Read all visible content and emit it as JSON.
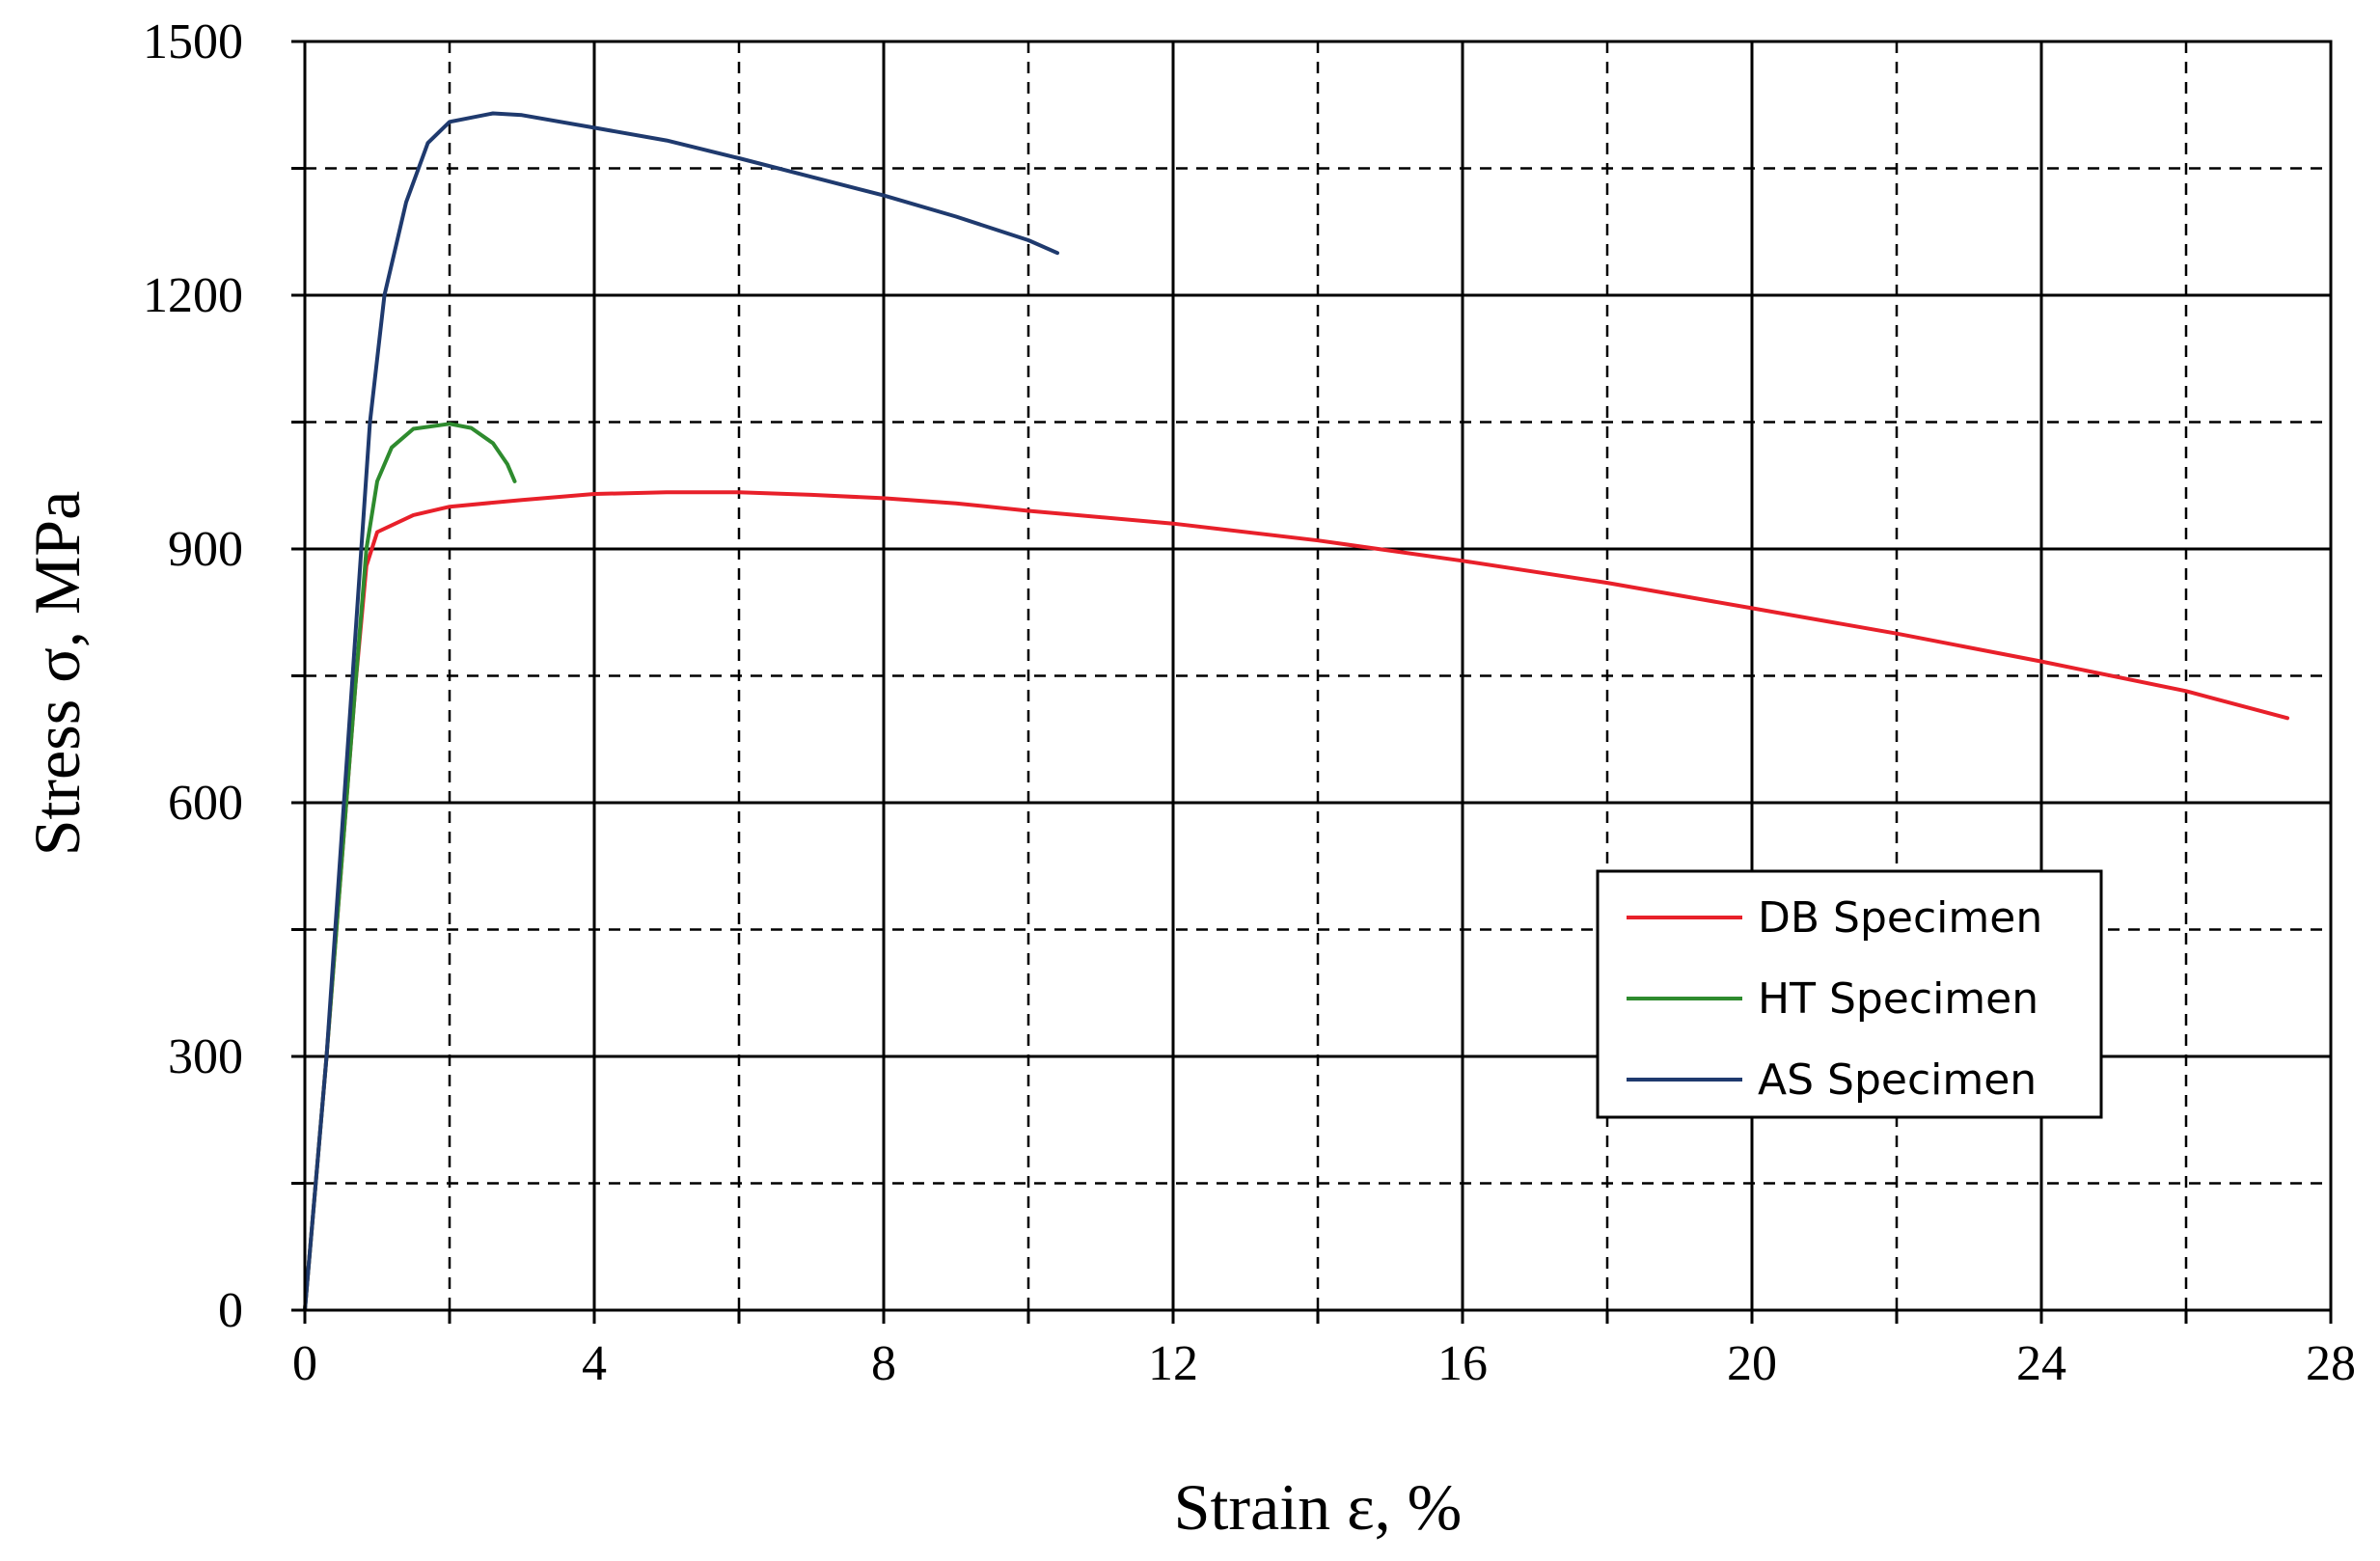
{
  "chart_data": {
    "type": "line",
    "title": "",
    "xlabel": "Strain ε, %",
    "ylabel": "Stress σ, MPa",
    "xlim": [
      0,
      28
    ],
    "ylim": [
      0,
      1500
    ],
    "xticks": [
      0,
      4,
      8,
      12,
      16,
      20,
      24,
      28
    ],
    "yticks": [
      0,
      300,
      600,
      900,
      1200,
      1500
    ],
    "x_minor_dashed_grid": [
      2,
      6,
      10,
      14,
      18,
      22,
      26
    ],
    "y_minor_dashed_grid": [
      150,
      450,
      750,
      1050,
      1350
    ],
    "grid": true,
    "legend_position": "right-middle",
    "series": [
      {
        "name": "DB Specimen",
        "color": "#e8202a",
        "points": [
          [
            0,
            0
          ],
          [
            0.3,
            300
          ],
          [
            0.5,
            520
          ],
          [
            0.7,
            740
          ],
          [
            0.85,
            880
          ],
          [
            1.0,
            920
          ],
          [
            1.5,
            940
          ],
          [
            2.0,
            950
          ],
          [
            3.0,
            958
          ],
          [
            4.0,
            965
          ],
          [
            5.0,
            967
          ],
          [
            6.0,
            967
          ],
          [
            7.0,
            964
          ],
          [
            8.0,
            960
          ],
          [
            9.0,
            954
          ],
          [
            10.0,
            945
          ],
          [
            12.0,
            930
          ],
          [
            14.0,
            910
          ],
          [
            16.0,
            886
          ],
          [
            18.0,
            860
          ],
          [
            20.0,
            830
          ],
          [
            22.0,
            800
          ],
          [
            24.0,
            767
          ],
          [
            26.0,
            732
          ],
          [
            27.4,
            700
          ]
        ]
      },
      {
        "name": "HT Specimen",
        "color": "#2e8b2e",
        "points": [
          [
            0,
            0
          ],
          [
            0.3,
            300
          ],
          [
            0.5,
            520
          ],
          [
            0.7,
            740
          ],
          [
            0.85,
            900
          ],
          [
            1.0,
            980
          ],
          [
            1.2,
            1020
          ],
          [
            1.5,
            1042
          ],
          [
            2.0,
            1048
          ],
          [
            2.3,
            1043
          ],
          [
            2.6,
            1025
          ],
          [
            2.8,
            1000
          ],
          [
            2.9,
            980
          ]
        ]
      },
      {
        "name": "AS Specimen",
        "color": "#1f3a6e",
        "points": [
          [
            0,
            0
          ],
          [
            0.3,
            300
          ],
          [
            0.5,
            550
          ],
          [
            0.7,
            800
          ],
          [
            0.9,
            1050
          ],
          [
            1.1,
            1200
          ],
          [
            1.4,
            1310
          ],
          [
            1.7,
            1380
          ],
          [
            2.0,
            1405
          ],
          [
            2.6,
            1415
          ],
          [
            3.0,
            1413
          ],
          [
            4.0,
            1398
          ],
          [
            5.0,
            1383
          ],
          [
            6.0,
            1362
          ],
          [
            7.0,
            1340
          ],
          [
            8.0,
            1318
          ],
          [
            9.0,
            1293
          ],
          [
            10.0,
            1265
          ],
          [
            10.4,
            1250
          ]
        ]
      }
    ]
  }
}
